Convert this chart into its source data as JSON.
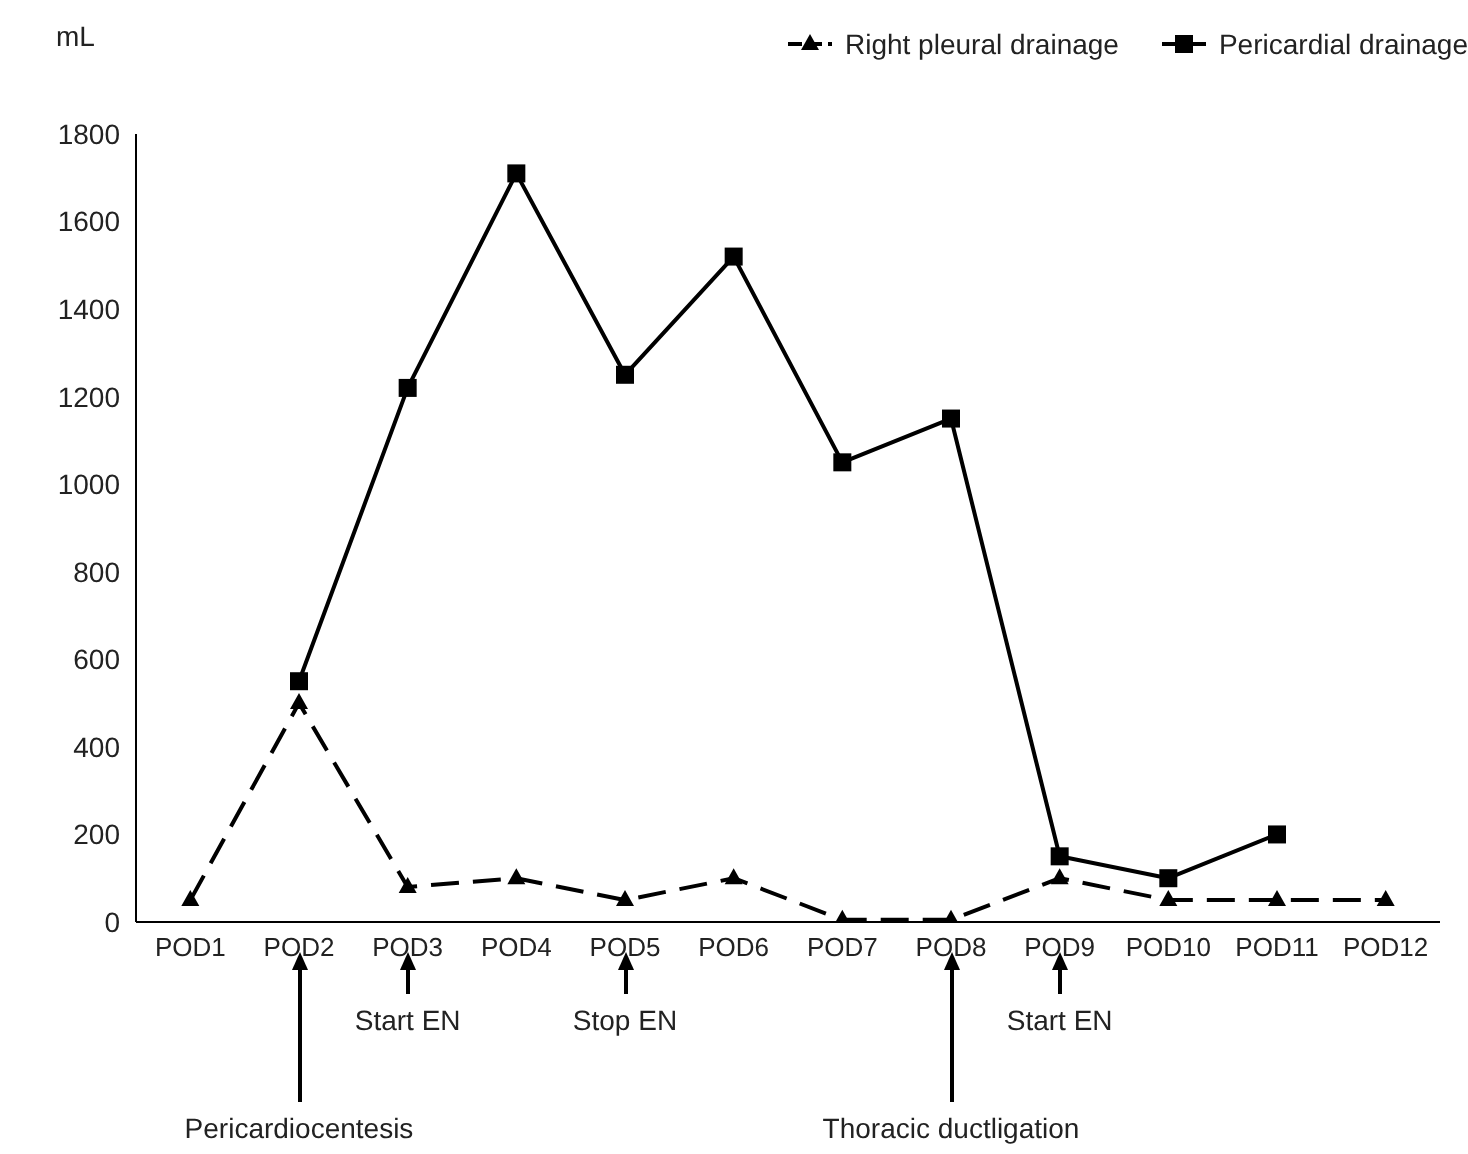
{
  "chart_data": {
    "type": "line",
    "ylabel": "mL",
    "categories": [
      "POD1",
      "POD2",
      "POD3",
      "POD4",
      "POD5",
      "POD6",
      "POD7",
      "POD8",
      "POD9",
      "POD10",
      "POD11",
      "POD12"
    ],
    "series": [
      {
        "name": "Right pleural drainage",
        "color": "#000000",
        "marker": "triangle",
        "line_style": "dashed",
        "values": [
          50,
          500,
          80,
          100,
          50,
          100,
          5,
          5,
          100,
          50,
          50,
          50
        ]
      },
      {
        "name": "Pericardial drainage",
        "color": "#000000",
        "marker": "square",
        "line_style": "solid",
        "values": [
          null,
          550,
          1220,
          1710,
          1250,
          1520,
          1050,
          1150,
          150,
          100,
          200,
          null
        ]
      }
    ],
    "ylim": [
      0,
      1800
    ],
    "yticks": [
      0,
      200,
      400,
      600,
      800,
      1000,
      1200,
      1400,
      1600,
      1800
    ],
    "grid": false,
    "legend": "top right",
    "annotations": [
      "Pericardiocentesis",
      "Start EN",
      "Stop EN",
      "Thoracic ductligation",
      "Start EN"
    ]
  }
}
